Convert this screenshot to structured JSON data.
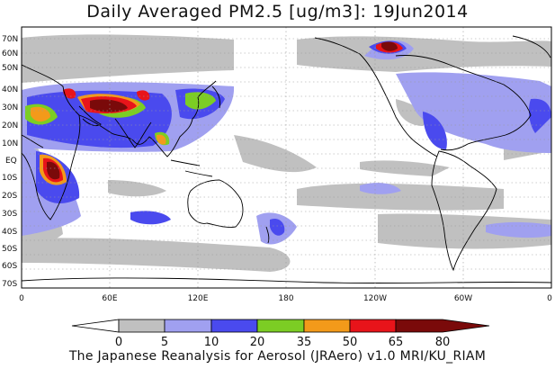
{
  "title": "Daily Averaged PM2.5 [ug/m3]: 19Jun2014",
  "credit": "The Japanese Reanalysis for Aerosol (JRAero) v1.0 MRI/KU_RIAM",
  "lat_labels": [
    "70N",
    "60N",
    "50N",
    "40N",
    "30N",
    "20N",
    "10N",
    "EQ",
    "10S",
    "20S",
    "30S",
    "40S",
    "50S",
    "60S",
    "70S"
  ],
  "lon_labels": [
    "0",
    "60E",
    "120E",
    "180",
    "120W",
    "60W",
    "0"
  ],
  "colorbar": {
    "ticks": [
      "0",
      "5",
      "10",
      "20",
      "35",
      "50",
      "65",
      "80"
    ],
    "colors": [
      "#ffffff",
      "#c0c0c0",
      "#a0a0f0",
      "#4a4aee",
      "#7ccd24",
      "#f39a1a",
      "#e8141a",
      "#7a0a0a"
    ]
  }
}
